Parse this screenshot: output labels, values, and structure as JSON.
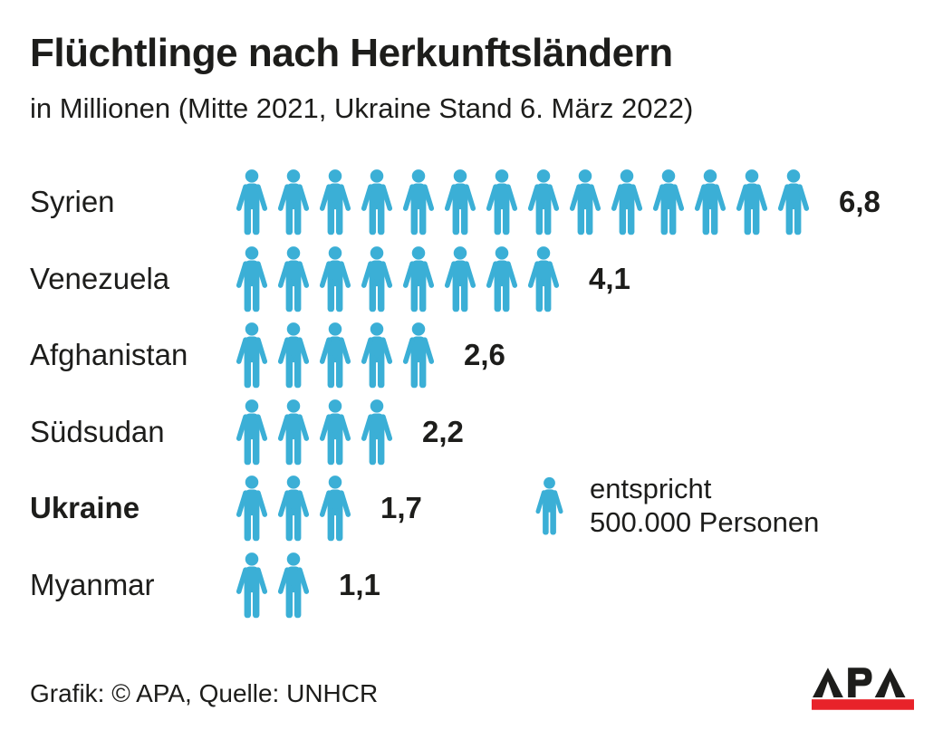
{
  "header": {
    "title": "Flüchtlinge nach Herkunftsländern",
    "subtitle": "in Millionen (Mitte 2021, Ukraine Stand 6. März 2022)"
  },
  "chart_data": {
    "type": "bar",
    "style": "pictogram",
    "title": "Flüchtlinge nach Herkunftsländern",
    "subtitle": "in Millionen (Mitte 2021, Ukraine Stand 6. März 2022)",
    "unit": "Millionen Personen",
    "icon_unit_persons": 500000,
    "categories": [
      "Syrien",
      "Venezuela",
      "Afghanistan",
      "Südsudan",
      "Ukraine",
      "Myanmar"
    ],
    "values": [
      6.8,
      4.1,
      2.6,
      2.2,
      1.7,
      1.1
    ],
    "highlighted_category": "Ukraine",
    "rows": [
      {
        "label": "Syrien",
        "value": 6.8,
        "value_label": "6,8",
        "icons": 14,
        "bold": false
      },
      {
        "label": "Venezuela",
        "value": 4.1,
        "value_label": "4,1",
        "icons": 8,
        "bold": false
      },
      {
        "label": "Afghanistan",
        "value": 2.6,
        "value_label": "2,6",
        "icons": 5,
        "bold": false
      },
      {
        "label": "Südsudan",
        "value": 2.2,
        "value_label": "2,2",
        "icons": 4,
        "bold": false
      },
      {
        "label": "Ukraine",
        "value": 1.7,
        "value_label": "1,7",
        "icons": 3,
        "bold": true
      },
      {
        "label": "Myanmar",
        "value": 1.1,
        "value_label": "1,1",
        "icons": 2,
        "bold": false
      }
    ]
  },
  "legend": {
    "icon": "person-icon",
    "line1": "entspricht",
    "line2": "500.000 Personen"
  },
  "footer": {
    "credit": "Grafik: © APA, Quelle: UNHCR",
    "logo_text": "APA"
  },
  "colors": {
    "icon_blue": "#3BAFD6",
    "text_black": "#1D1D1B",
    "logo_red": "#E8232A",
    "background": "#FFFFFF"
  }
}
